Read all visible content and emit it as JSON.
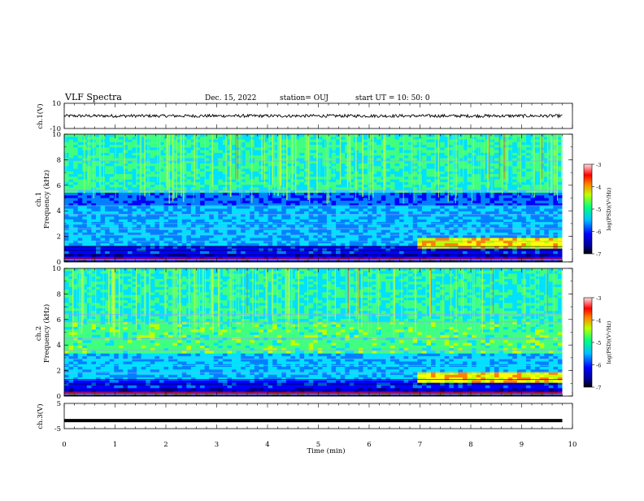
{
  "header": {
    "title": "VLF Spectra",
    "date": "Dec. 15, 2022",
    "station": "station= OUJ",
    "start": "start  UT =  10: 50: 0"
  },
  "chart_data": [
    {
      "type": "line",
      "panel": "ch1-waveform",
      "ylabel": "ch.1(V)",
      "ylim": [
        -10,
        10
      ],
      "yticks": [
        "10",
        "-10"
      ],
      "series": [
        {
          "values": [
            0
          ]
        }
      ],
      "baseline": 0,
      "noise_amplitude": 1.2,
      "color": "#000000"
    },
    {
      "type": "heatmap",
      "panel": "ch1-spectrogram",
      "ylabel_line1": "ch.1",
      "ylabel_line2": "Frequency (kHz)",
      "ylim": [
        0,
        10
      ],
      "yticks": [
        "0",
        "2",
        "4",
        "6",
        "8",
        "10"
      ],
      "colorbar": {
        "label": "log(PSD)(V²/Hz)",
        "range": [
          -7,
          -3
        ],
        "ticks": [
          "-3",
          "-4",
          "-5",
          "-6",
          "-7"
        ]
      }
    },
    {
      "type": "heatmap",
      "panel": "ch2-spectrogram",
      "ylabel_line1": "ch.2",
      "ylabel_line2": "Frequency (kHz)",
      "ylim": [
        0,
        10
      ],
      "yticks": [
        "0",
        "2",
        "4",
        "6",
        "8",
        "10"
      ],
      "colorbar": {
        "label": "log(PSD)(V²/Hz)",
        "range": [
          -7,
          -3
        ],
        "ticks": [
          "-3",
          "-4",
          "-5",
          "-6",
          "-7"
        ]
      }
    },
    {
      "type": "line",
      "panel": "ch3-waveform",
      "ylabel": "ch.3(V)",
      "ylim": [
        -5,
        5
      ],
      "yticks": [
        "5",
        "-5"
      ],
      "series": [
        {
          "values": [
            -1.8
          ]
        }
      ],
      "baseline": -1.8,
      "color": "#000000"
    }
  ],
  "xaxis": {
    "label": "Time (min)",
    "range": [
      0,
      10
    ],
    "data_end": 9.8,
    "ticks": [
      "0",
      "1",
      "2",
      "3",
      "4",
      "5",
      "6",
      "7",
      "8",
      "9",
      "10"
    ]
  },
  "colors": {
    "background": "#ffffff",
    "axis": "#000000",
    "colormap": [
      "#00008b",
      "#0000ff",
      "#0080ff",
      "#00e0ff",
      "#40ff80",
      "#c0ff00",
      "#ffff00",
      "#ff8000",
      "#ff0000",
      "#ffd0d0"
    ]
  }
}
